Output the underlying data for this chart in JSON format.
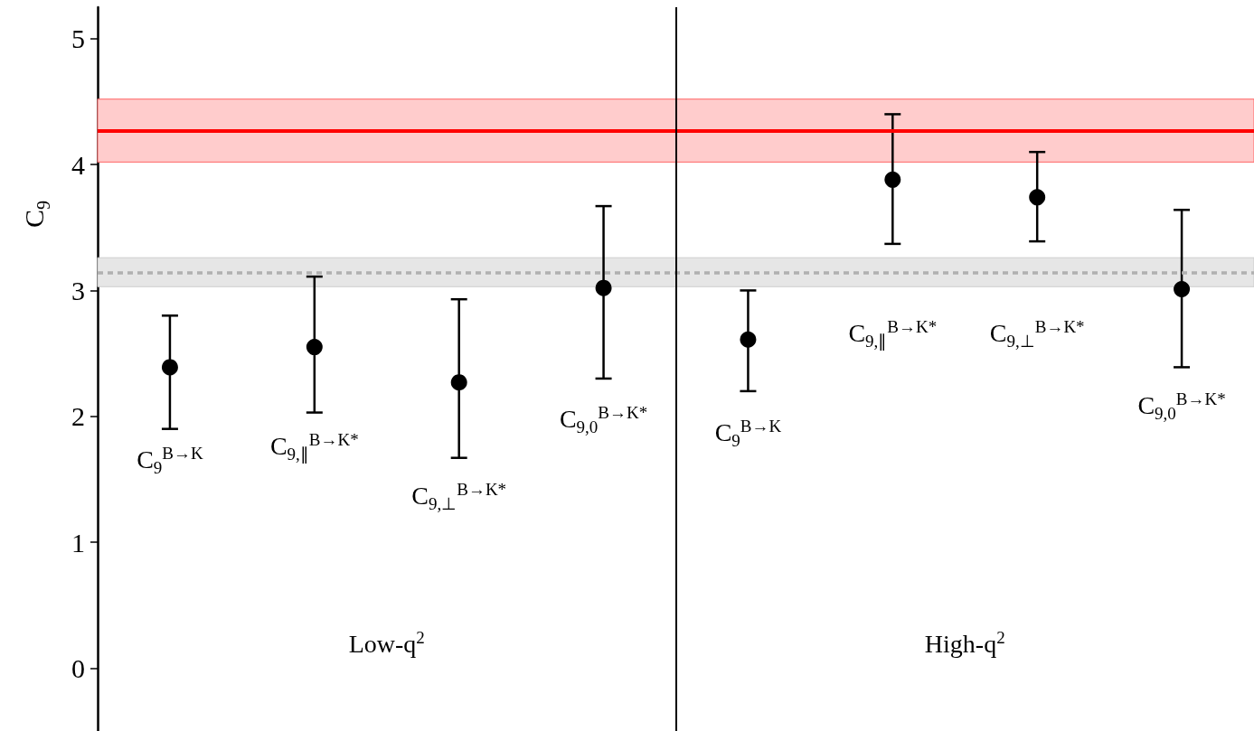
{
  "chart_data": {
    "type": "scatter",
    "ylabel": "C$_{9}$",
    "categories": [
      null,
      null,
      null,
      null,
      null,
      null,
      null,
      null
    ],
    "series": [
      {
        "color": "#000000",
        "values": [
          2.39,
          2.55,
          2.27,
          3.02,
          2.61,
          3.88,
          3.74,
          3.01
        ],
        "errors": [
          [
            1.9,
            2.8
          ],
          [
            2.03,
            3.11
          ],
          [
            1.67,
            2.93
          ],
          [
            2.3,
            3.67
          ],
          [
            2.2,
            3.0
          ],
          [
            3.37,
            4.4
          ],
          [
            3.39,
            4.1
          ],
          [
            2.39,
            3.64
          ]
        ]
      }
    ],
    "marker": "circle",
    "ylim": [
      -0.5,
      5.25
    ],
    "yticks": [
      0,
      1,
      2,
      3,
      4,
      5
    ],
    "tick_labels": "y",
    "grid": false,
    "ref_lines": [
      {
        "axis": "y",
        "value": 4.27,
        "label": null,
        "color": "#ff0000",
        "line_style": "solid"
      },
      {
        "axis": "y",
        "value": 3.14,
        "label": null,
        "color": "#b0b0b0",
        "line_style": "dashed"
      }
    ],
    "bands": [
      {
        "axis": "y",
        "from": 4.02,
        "to": 4.52,
        "label": null,
        "color": "#ffcccc"
      },
      {
        "axis": "y",
        "from": 3.03,
        "to": 3.26,
        "label": null,
        "color": "#e6e6e6"
      }
    ],
    "annotations": [
      "C$_{9}$$^{B→K}$",
      "C$_{9,∥}$$^{B→K*}$",
      "C$_{9,⊥}$$^{B→K*}$",
      "C$_{9,0}$$^{B→K*}$",
      "C$_{9}$$^{B→K}$",
      "C$_{9,∥}$$^{B→K*}$",
      "C$_{9,⊥}$$^{B→K*}$",
      "C$_{9,0}$$^{B→K*}$",
      "Low-q$^{2}$",
      "High-q$^{2}$"
    ]
  }
}
